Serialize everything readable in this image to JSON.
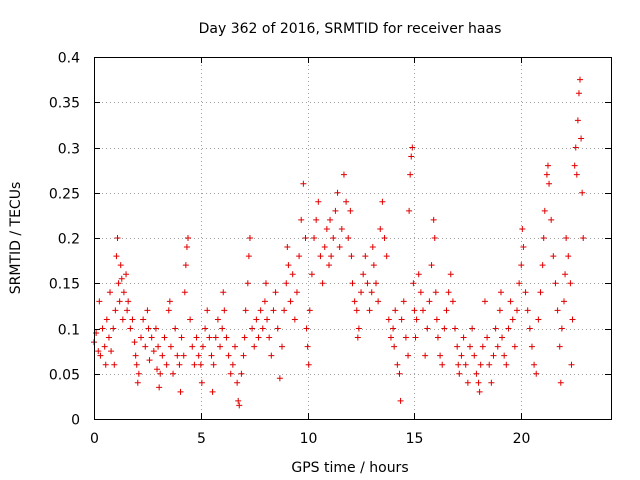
{
  "chart_data": {
    "type": "scatter",
    "title": "Day 362 of 2016, SRMTID for receiver haas",
    "xlabel": "GPS time / hours",
    "ylabel": "SRMTID / TECUs",
    "xlim": [
      0,
      24.2
    ],
    "ylim": [
      0,
      0.4
    ],
    "xticks": [
      0,
      5,
      10,
      15,
      20
    ],
    "xtick_labels": [
      "0",
      "5",
      "10",
      "15",
      "20"
    ],
    "yticks": [
      0,
      0.05,
      0.1,
      0.15,
      0.2,
      0.25,
      0.3,
      0.35,
      0.4
    ],
    "ytick_labels": [
      "0",
      "0.05",
      "0.1",
      "0.15",
      "0.2",
      "0.25",
      "0.3",
      "0.35",
      "0.4"
    ],
    "grid": true,
    "marker": "+",
    "marker_color": "#e00000",
    "series": [
      {
        "name": "SRMTID",
        "points": [
          [
            0.0,
            0.085
          ],
          [
            0.1,
            0.095
          ],
          [
            0.2,
            0.075
          ],
          [
            0.25,
            0.13
          ],
          [
            0.3,
            0.07
          ],
          [
            0.4,
            0.1
          ],
          [
            0.5,
            0.08
          ],
          [
            0.55,
            0.06
          ],
          [
            0.6,
            0.11
          ],
          [
            0.7,
            0.09
          ],
          [
            0.75,
            0.14
          ],
          [
            0.8,
            0.075
          ],
          [
            0.9,
            0.1
          ],
          [
            0.95,
            0.06
          ],
          [
            1.0,
            0.12
          ],
          [
            1.05,
            0.18
          ],
          [
            1.1,
            0.2
          ],
          [
            1.15,
            0.15
          ],
          [
            1.2,
            0.13
          ],
          [
            1.25,
            0.17
          ],
          [
            1.3,
            0.155
          ],
          [
            1.35,
            0.11
          ],
          [
            1.4,
            0.14
          ],
          [
            1.5,
            0.16
          ],
          [
            1.55,
            0.12
          ],
          [
            1.6,
            0.13
          ],
          [
            1.7,
            0.1
          ],
          [
            1.8,
            0.11
          ],
          [
            1.9,
            0.085
          ],
          [
            1.95,
            0.07
          ],
          [
            2.0,
            0.06
          ],
          [
            2.05,
            0.04
          ],
          [
            2.1,
            0.05
          ],
          [
            2.2,
            0.09
          ],
          [
            2.3,
            0.11
          ],
          [
            2.4,
            0.08
          ],
          [
            2.5,
            0.12
          ],
          [
            2.55,
            0.1
          ],
          [
            2.6,
            0.065
          ],
          [
            2.7,
            0.09
          ],
          [
            2.8,
            0.075
          ],
          [
            2.9,
            0.1
          ],
          [
            2.95,
            0.055
          ],
          [
            3.0,
            0.08
          ],
          [
            3.05,
            0.035
          ],
          [
            3.1,
            0.05
          ],
          [
            3.2,
            0.07
          ],
          [
            3.3,
            0.09
          ],
          [
            3.4,
            0.06
          ],
          [
            3.5,
            0.12
          ],
          [
            3.55,
            0.13
          ],
          [
            3.6,
            0.08
          ],
          [
            3.7,
            0.05
          ],
          [
            3.8,
            0.1
          ],
          [
            3.9,
            0.07
          ],
          [
            4.0,
            0.06
          ],
          [
            4.05,
            0.03
          ],
          [
            4.1,
            0.09
          ],
          [
            4.2,
            0.07
          ],
          [
            4.25,
            0.14
          ],
          [
            4.3,
            0.17
          ],
          [
            4.35,
            0.19
          ],
          [
            4.4,
            0.2
          ],
          [
            4.5,
            0.11
          ],
          [
            4.6,
            0.08
          ],
          [
            4.7,
            0.06
          ],
          [
            4.8,
            0.09
          ],
          [
            4.9,
            0.07
          ],
          [
            5.0,
            0.06
          ],
          [
            5.05,
            0.04
          ],
          [
            5.1,
            0.08
          ],
          [
            5.2,
            0.1
          ],
          [
            5.3,
            0.12
          ],
          [
            5.4,
            0.09
          ],
          [
            5.5,
            0.07
          ],
          [
            5.55,
            0.03
          ],
          [
            5.6,
            0.06
          ],
          [
            5.7,
            0.09
          ],
          [
            5.8,
            0.11
          ],
          [
            5.9,
            0.08
          ],
          [
            6.0,
            0.1
          ],
          [
            6.05,
            0.14
          ],
          [
            6.1,
            0.12
          ],
          [
            6.2,
            0.09
          ],
          [
            6.3,
            0.07
          ],
          [
            6.4,
            0.05
          ],
          [
            6.5,
            0.06
          ],
          [
            6.6,
            0.08
          ],
          [
            6.7,
            0.04
          ],
          [
            6.75,
            0.02
          ],
          [
            6.8,
            0.015
          ],
          [
            6.9,
            0.05
          ],
          [
            7.0,
            0.07
          ],
          [
            7.05,
            0.09
          ],
          [
            7.1,
            0.12
          ],
          [
            7.2,
            0.15
          ],
          [
            7.25,
            0.18
          ],
          [
            7.3,
            0.2
          ],
          [
            7.4,
            0.1
          ],
          [
            7.5,
            0.08
          ],
          [
            7.6,
            0.11
          ],
          [
            7.7,
            0.09
          ],
          [
            7.8,
            0.12
          ],
          [
            7.9,
            0.1
          ],
          [
            8.0,
            0.13
          ],
          [
            8.05,
            0.15
          ],
          [
            8.1,
            0.11
          ],
          [
            8.2,
            0.09
          ],
          [
            8.3,
            0.07
          ],
          [
            8.4,
            0.12
          ],
          [
            8.5,
            0.14
          ],
          [
            8.6,
            0.1
          ],
          [
            8.7,
            0.045
          ],
          [
            8.8,
            0.08
          ],
          [
            8.9,
            0.12
          ],
          [
            9.0,
            0.15
          ],
          [
            9.05,
            0.19
          ],
          [
            9.1,
            0.17
          ],
          [
            9.2,
            0.13
          ],
          [
            9.3,
            0.16
          ],
          [
            9.4,
            0.11
          ],
          [
            9.5,
            0.14
          ],
          [
            9.6,
            0.18
          ],
          [
            9.7,
            0.22
          ],
          [
            9.8,
            0.26
          ],
          [
            9.9,
            0.2
          ],
          [
            9.95,
            0.1
          ],
          [
            10.0,
            0.08
          ],
          [
            10.05,
            0.06
          ],
          [
            10.1,
            0.12
          ],
          [
            10.2,
            0.16
          ],
          [
            10.3,
            0.2
          ],
          [
            10.4,
            0.22
          ],
          [
            10.5,
            0.24
          ],
          [
            10.6,
            0.18
          ],
          [
            10.7,
            0.15
          ],
          [
            10.8,
            0.19
          ],
          [
            10.9,
            0.21
          ],
          [
            11.0,
            0.17
          ],
          [
            11.05,
            0.22
          ],
          [
            11.1,
            0.18
          ],
          [
            11.2,
            0.2
          ],
          [
            11.3,
            0.23
          ],
          [
            11.4,
            0.25
          ],
          [
            11.5,
            0.19
          ],
          [
            11.6,
            0.21
          ],
          [
            11.7,
            0.27
          ],
          [
            11.8,
            0.24
          ],
          [
            11.9,
            0.2
          ],
          [
            12.0,
            0.23
          ],
          [
            12.05,
            0.18
          ],
          [
            12.1,
            0.15
          ],
          [
            12.2,
            0.13
          ],
          [
            12.3,
            0.12
          ],
          [
            12.35,
            0.09
          ],
          [
            12.4,
            0.1
          ],
          [
            12.5,
            0.14
          ],
          [
            12.6,
            0.16
          ],
          [
            12.7,
            0.18
          ],
          [
            12.8,
            0.15
          ],
          [
            12.9,
            0.12
          ],
          [
            13.0,
            0.14
          ],
          [
            13.05,
            0.19
          ],
          [
            13.1,
            0.17
          ],
          [
            13.2,
            0.15
          ],
          [
            13.3,
            0.13
          ],
          [
            13.4,
            0.21
          ],
          [
            13.5,
            0.24
          ],
          [
            13.6,
            0.2
          ],
          [
            13.7,
            0.18
          ],
          [
            13.8,
            0.11
          ],
          [
            13.9,
            0.09
          ],
          [
            14.0,
            0.1
          ],
          [
            14.05,
            0.08
          ],
          [
            14.1,
            0.12
          ],
          [
            14.2,
            0.06
          ],
          [
            14.3,
            0.05
          ],
          [
            14.35,
            0.02
          ],
          [
            14.4,
            0.11
          ],
          [
            14.5,
            0.13
          ],
          [
            14.6,
            0.09
          ],
          [
            14.7,
            0.07
          ],
          [
            14.75,
            0.23
          ],
          [
            14.8,
            0.27
          ],
          [
            14.85,
            0.29
          ],
          [
            14.9,
            0.3
          ],
          [
            14.95,
            0.15
          ],
          [
            15.0,
            0.12
          ],
          [
            15.05,
            0.09
          ],
          [
            15.1,
            0.11
          ],
          [
            15.2,
            0.16
          ],
          [
            15.3,
            0.14
          ],
          [
            15.4,
            0.12
          ],
          [
            15.5,
            0.07
          ],
          [
            15.6,
            0.1
          ],
          [
            15.7,
            0.13
          ],
          [
            15.8,
            0.17
          ],
          [
            15.9,
            0.22
          ],
          [
            15.95,
            0.2
          ],
          [
            16.0,
            0.14
          ],
          [
            16.05,
            0.11
          ],
          [
            16.1,
            0.09
          ],
          [
            16.2,
            0.07
          ],
          [
            16.3,
            0.06
          ],
          [
            16.4,
            0.1
          ],
          [
            16.5,
            0.12
          ],
          [
            16.6,
            0.14
          ],
          [
            16.7,
            0.16
          ],
          [
            16.8,
            0.13
          ],
          [
            16.9,
            0.1
          ],
          [
            17.0,
            0.08
          ],
          [
            17.05,
            0.06
          ],
          [
            17.1,
            0.05
          ],
          [
            17.2,
            0.07
          ],
          [
            17.3,
            0.09
          ],
          [
            17.4,
            0.06
          ],
          [
            17.5,
            0.04
          ],
          [
            17.6,
            0.08
          ],
          [
            17.7,
            0.1
          ],
          [
            17.8,
            0.07
          ],
          [
            17.9,
            0.05
          ],
          [
            18.0,
            0.04
          ],
          [
            18.05,
            0.03
          ],
          [
            18.1,
            0.06
          ],
          [
            18.2,
            0.08
          ],
          [
            18.3,
            0.13
          ],
          [
            18.4,
            0.09
          ],
          [
            18.5,
            0.06
          ],
          [
            18.6,
            0.04
          ],
          [
            18.7,
            0.07
          ],
          [
            18.8,
            0.1
          ],
          [
            18.9,
            0.08
          ],
          [
            19.0,
            0.12
          ],
          [
            19.05,
            0.14
          ],
          [
            19.1,
            0.09
          ],
          [
            19.2,
            0.07
          ],
          [
            19.3,
            0.06
          ],
          [
            19.4,
            0.1
          ],
          [
            19.5,
            0.13
          ],
          [
            19.6,
            0.11
          ],
          [
            19.7,
            0.08
          ],
          [
            19.8,
            0.12
          ],
          [
            19.9,
            0.15
          ],
          [
            20.0,
            0.17
          ],
          [
            20.05,
            0.21
          ],
          [
            20.1,
            0.19
          ],
          [
            20.2,
            0.14
          ],
          [
            20.3,
            0.12
          ],
          [
            20.4,
            0.1
          ],
          [
            20.5,
            0.08
          ],
          [
            20.6,
            0.06
          ],
          [
            20.7,
            0.05
          ],
          [
            20.8,
            0.11
          ],
          [
            20.9,
            0.14
          ],
          [
            21.0,
            0.17
          ],
          [
            21.05,
            0.2
          ],
          [
            21.1,
            0.23
          ],
          [
            21.2,
            0.27
          ],
          [
            21.25,
            0.28
          ],
          [
            21.3,
            0.26
          ],
          [
            21.4,
            0.22
          ],
          [
            21.5,
            0.18
          ],
          [
            21.6,
            0.15
          ],
          [
            21.7,
            0.12
          ],
          [
            21.8,
            0.08
          ],
          [
            21.85,
            0.04
          ],
          [
            21.9,
            0.1
          ],
          [
            22.0,
            0.13
          ],
          [
            22.05,
            0.16
          ],
          [
            22.1,
            0.2
          ],
          [
            22.2,
            0.18
          ],
          [
            22.3,
            0.15
          ],
          [
            22.35,
            0.06
          ],
          [
            22.4,
            0.11
          ],
          [
            22.5,
            0.28
          ],
          [
            22.55,
            0.3
          ],
          [
            22.6,
            0.27
          ],
          [
            22.65,
            0.33
          ],
          [
            22.7,
            0.36
          ],
          [
            22.75,
            0.375
          ],
          [
            22.8,
            0.31
          ],
          [
            22.85,
            0.25
          ],
          [
            22.9,
            0.2
          ]
        ]
      }
    ]
  }
}
